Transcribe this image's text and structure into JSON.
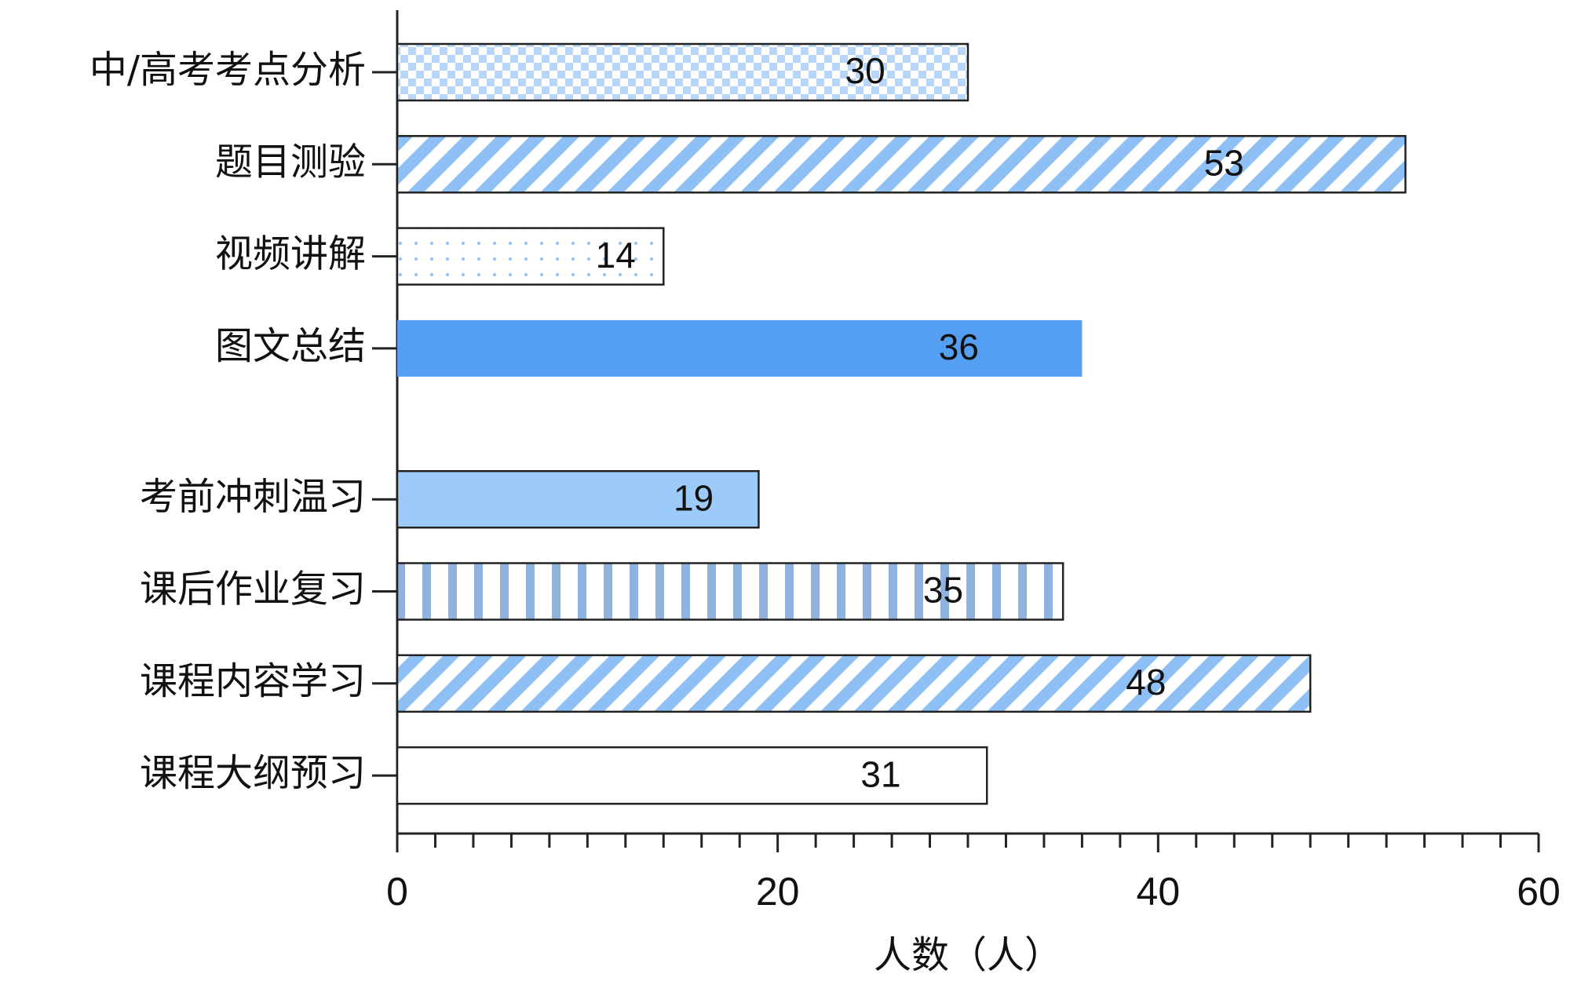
{
  "chart_data": {
    "type": "bar",
    "orientation": "horizontal",
    "categories": [
      "中/高考考点分析",
      "题目测验",
      "视频讲解",
      "图文总结",
      "考前冲刺温习",
      "课后作业复习",
      "课程内容学习",
      "课程大纲预习"
    ],
    "values": [
      30,
      53,
      14,
      36,
      19,
      35,
      48,
      31
    ],
    "bar_styles": [
      {
        "pattern": "checker",
        "color": "#b7d6f8",
        "outline": true
      },
      {
        "pattern": "diagonal",
        "color": "#8fc0f5",
        "outline": true
      },
      {
        "pattern": "dots",
        "color": "#9cc6f2",
        "outline": true
      },
      {
        "pattern": "solid",
        "color": "#559ff2",
        "outline": false
      },
      {
        "pattern": "solid",
        "color": "#9ccbfa",
        "outline": true
      },
      {
        "pattern": "vertical",
        "color": "#8fb2de",
        "outline": true
      },
      {
        "pattern": "diagonal",
        "color": "#8fc0f5",
        "outline": true
      },
      {
        "pattern": "solid",
        "color": "#ffffff",
        "outline": true
      }
    ],
    "xlabel": "人数（人）",
    "xlim": [
      0,
      60
    ],
    "xticks": [
      0,
      20,
      40,
      60
    ],
    "grid": false
  }
}
